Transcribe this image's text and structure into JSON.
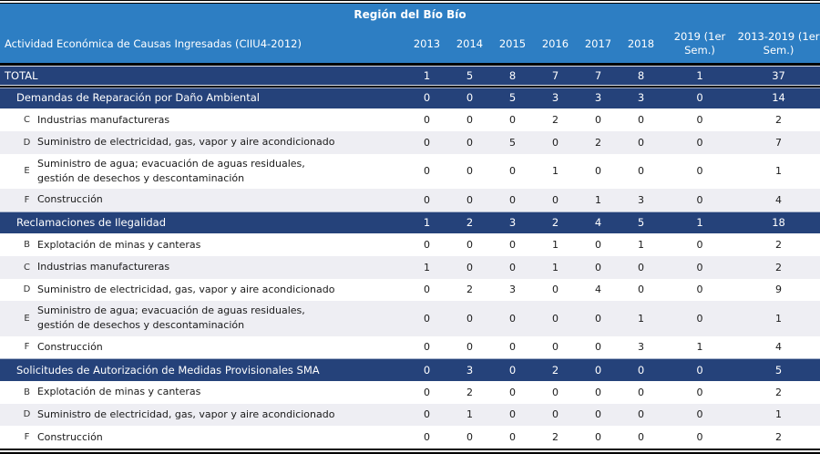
{
  "table": {
    "title": "Región del Bío Bío",
    "header": {
      "activity_label": "Actividad Económica de Causas Ingresadas (CIIU4-2012)",
      "year_columns": [
        "2013",
        "2014",
        "2015",
        "2016",
        "2017",
        "2018",
        "2019 (1er Sem.)",
        "2013-2019 (1er Sem.)"
      ]
    },
    "total_row": {
      "label": "TOTAL",
      "values": [
        1,
        5,
        8,
        7,
        7,
        8,
        1,
        37
      ]
    },
    "sections": [
      {
        "label": "Demandas de Reparación por Daño Ambiental",
        "values": [
          0,
          0,
          5,
          3,
          3,
          3,
          0,
          14
        ],
        "rows": [
          {
            "code": "C",
            "label": "Industrias manufactureras",
            "values": [
              0,
              0,
              0,
              2,
              0,
              0,
              0,
              2
            ]
          },
          {
            "code": "D",
            "label": "Suministro de electricidad, gas, vapor y aire acondicionado",
            "values": [
              0,
              0,
              5,
              0,
              2,
              0,
              0,
              7
            ]
          },
          {
            "code": "E",
            "label": "Suministro de agua; evacuación de aguas residuales,\ngestión de desechos y descontaminación",
            "values": [
              0,
              0,
              0,
              1,
              0,
              0,
              0,
              1
            ]
          },
          {
            "code": "F",
            "label": "Construcción",
            "values": [
              0,
              0,
              0,
              0,
              1,
              3,
              0,
              4
            ]
          }
        ]
      },
      {
        "label": "Reclamaciones de Ilegalidad",
        "values": [
          1,
          2,
          3,
          2,
          4,
          5,
          1,
          18
        ],
        "rows": [
          {
            "code": "B",
            "label": "Explotación de minas y canteras",
            "values": [
              0,
              0,
              0,
              1,
              0,
              1,
              0,
              2
            ]
          },
          {
            "code": "C",
            "label": "Industrias manufactureras",
            "values": [
              1,
              0,
              0,
              1,
              0,
              0,
              0,
              2
            ]
          },
          {
            "code": "D",
            "label": "Suministro de electricidad, gas, vapor y aire acondicionado",
            "values": [
              0,
              2,
              3,
              0,
              4,
              0,
              0,
              9
            ]
          },
          {
            "code": "E",
            "label": "Suministro de agua; evacuación de aguas residuales,\ngestión de desechos y descontaminación",
            "values": [
              0,
              0,
              0,
              0,
              0,
              1,
              0,
              1
            ]
          },
          {
            "code": "F",
            "label": "Construcción",
            "values": [
              0,
              0,
              0,
              0,
              0,
              3,
              1,
              4
            ]
          }
        ]
      },
      {
        "label": "Solicitudes de Autorización de Medidas Provisionales SMA",
        "values": [
          0,
          3,
          0,
          2,
          0,
          0,
          0,
          5
        ],
        "rows": [
          {
            "code": "B",
            "label": "Explotación de minas y canteras",
            "values": [
              0,
              2,
              0,
              0,
              0,
              0,
              0,
              2
            ]
          },
          {
            "code": "D",
            "label": "Suministro de electricidad, gas, vapor y aire acondicionado",
            "values": [
              0,
              1,
              0,
              0,
              0,
              0,
              0,
              1
            ]
          },
          {
            "code": "F",
            "label": "Construcción",
            "values": [
              0,
              0,
              0,
              2,
              0,
              0,
              0,
              2
            ]
          }
        ]
      }
    ],
    "colors": {
      "header_blue": "#2d7ec3",
      "navy_row": "#25427a",
      "alt_row_gray": "#eeeef3",
      "text_on_dark": "#ffffff",
      "text_body": "#1a1a1a"
    }
  }
}
